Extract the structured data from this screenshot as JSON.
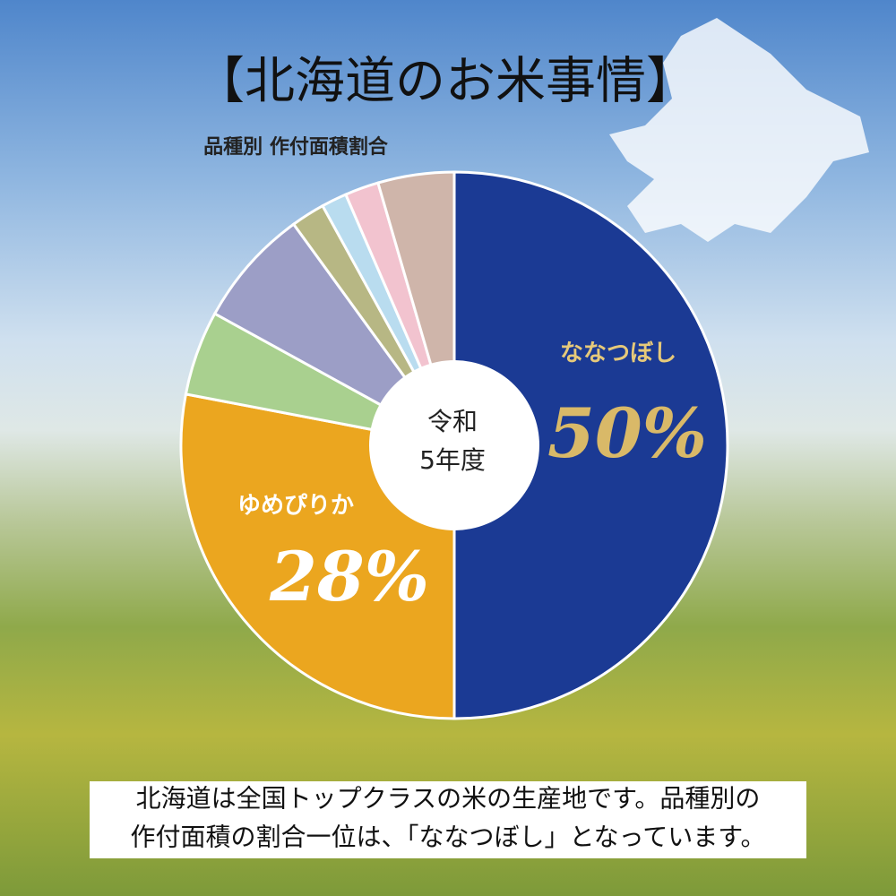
{
  "title": "【北海道のお米事情】",
  "chart_data": {
    "type": "pie",
    "title": "品種別 作付面積割合",
    "categories": [
      "ななつぼし",
      "ゆめぴりか",
      null,
      null,
      null,
      null,
      null,
      null
    ],
    "values": [
      50,
      28,
      5,
      7,
      2,
      1.5,
      2,
      4.5
    ],
    "value_labels": [
      "50%",
      "28%",
      null,
      null,
      null,
      null,
      null,
      null
    ],
    "colors": [
      "#1b3a94",
      "#eba61f",
      "#a9d08f",
      "#9c9ec6",
      "#b7b784",
      "#b9dcef",
      "#f2c3cf",
      "#cfb5aa"
    ],
    "center_label": [
      "令和",
      "5年度"
    ]
  },
  "footer": [
    "北海道は全国トップクラスの米の生産地です。品種別の",
    "作付面積の割合一位は、「ななつぼし」となっています。"
  ]
}
